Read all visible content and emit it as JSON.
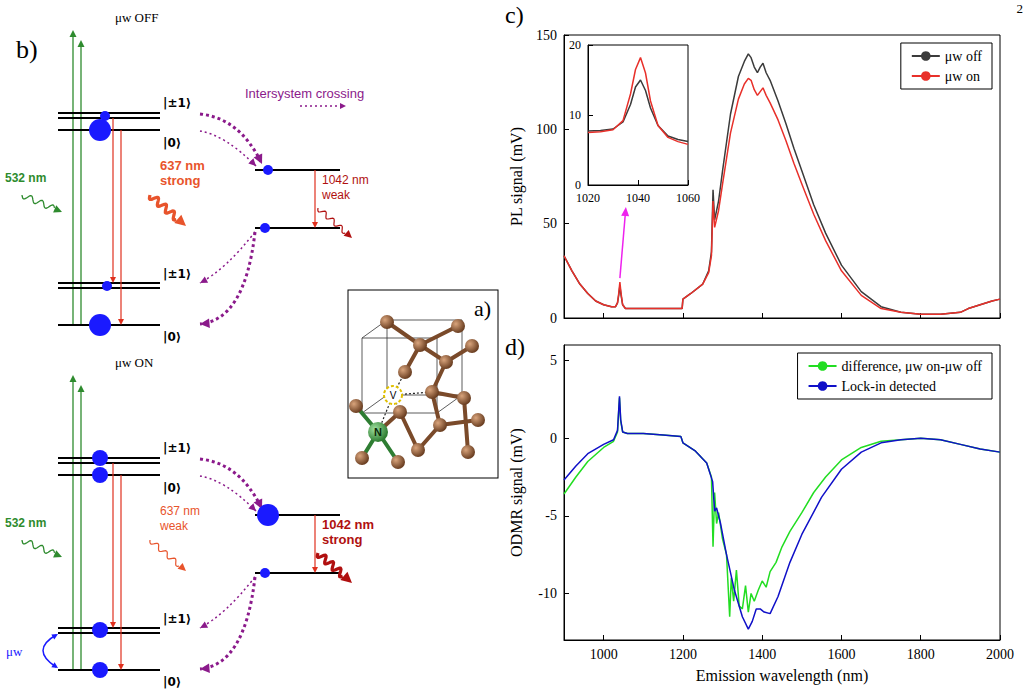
{
  "page_number": "2",
  "panel_b": {
    "letter": "b)",
    "intersystem_crossing": "Intersystem crossing",
    "levels": {
      "plus_minus_one": "|±1⟩",
      "zero": "|0⟩"
    },
    "mw_off": {
      "title": "μw OFF",
      "excitation": "532 nm",
      "visible_emission": [
        "637 nm",
        "strong"
      ],
      "infrared_emission": [
        "1042 nm",
        "weak"
      ]
    },
    "mw_on": {
      "title": "μw ON",
      "excitation": "532 nm",
      "visible_emission": [
        "637 nm",
        "weak"
      ],
      "infrared_emission": [
        "1042 nm",
        "strong"
      ],
      "microwave": "μw"
    }
  },
  "panel_a": {
    "letter": "a)",
    "atoms": {
      "nitrogen": "N",
      "vacancy": "V"
    }
  },
  "chart_data": [
    {
      "letter": "c)",
      "type": "line",
      "ylabel": "PL signal (mV)",
      "xlim": [
        900,
        2000
      ],
      "xticks": [
        1000,
        1200,
        1400,
        1600,
        1800,
        2000
      ],
      "ylim": [
        0,
        150
      ],
      "yticks": [
        0,
        50,
        100,
        150
      ],
      "tick_labels": "y",
      "legend": "upper right",
      "series": [
        {
          "name": "μw off",
          "color": "#3b3b3b",
          "x": [
            900,
            920,
            940,
            960,
            980,
            1000,
            1020,
            1030,
            1035,
            1038,
            1041,
            1044,
            1048,
            1055,
            1100,
            1150,
            1198,
            1200,
            1220,
            1250,
            1265,
            1272,
            1276,
            1280,
            1290,
            1300,
            1320,
            1340,
            1355,
            1365,
            1372,
            1380,
            1388,
            1395,
            1402,
            1410,
            1420,
            1440,
            1460,
            1480,
            1500,
            1530,
            1560,
            1600,
            1650,
            1700,
            1750,
            1800,
            1850,
            1900,
            1920,
            1950,
            1980,
            2000
          ],
          "values": [
            33,
            25,
            18,
            13,
            9,
            7,
            6,
            6,
            8,
            12,
            17,
            12,
            7,
            5,
            5,
            5,
            5,
            10,
            13,
            18,
            25,
            35,
            68,
            52,
            62,
            78,
            108,
            128,
            136,
            140,
            138,
            133,
            130,
            133,
            135,
            130,
            126,
            115,
            103,
            90,
            78,
            60,
            45,
            28,
            14,
            6,
            3,
            2,
            2,
            3,
            5,
            7,
            9,
            10
          ]
        },
        {
          "name": "μw on",
          "color": "#e8302a",
          "x": [
            900,
            920,
            940,
            960,
            980,
            1000,
            1020,
            1030,
            1035,
            1038,
            1041,
            1044,
            1048,
            1055,
            1100,
            1150,
            1198,
            1200,
            1220,
            1250,
            1265,
            1272,
            1276,
            1280,
            1290,
            1300,
            1320,
            1340,
            1355,
            1365,
            1372,
            1380,
            1388,
            1395,
            1402,
            1410,
            1420,
            1440,
            1460,
            1480,
            1500,
            1530,
            1560,
            1600,
            1650,
            1700,
            1750,
            1800,
            1850,
            1900,
            1920,
            1950,
            1980,
            2000
          ],
          "values": [
            33,
            25,
            18,
            13,
            9,
            7,
            6,
            6,
            8,
            13,
            19,
            13,
            7,
            5,
            5,
            5,
            5,
            10,
            13,
            18,
            24,
            33,
            62,
            48,
            57,
            71,
            98,
            116,
            124,
            127,
            126,
            121,
            118,
            120,
            122,
            118,
            114,
            105,
            94,
            82,
            71,
            55,
            41,
            25,
            12,
            5,
            3,
            2,
            2,
            3,
            5,
            7,
            9,
            10
          ]
        }
      ],
      "inset": {
        "type": "line",
        "xlim": [
          1020,
          1060
        ],
        "xticks": [
          1020,
          1040,
          1060
        ],
        "ylim": [
          0,
          20
        ],
        "yticks": [
          0,
          10,
          20
        ],
        "series": [
          {
            "name": "μw off",
            "color": "#3b3b3b",
            "x": [
              1020,
              1025,
              1030,
              1034,
              1037,
              1039,
              1041,
              1043,
              1045,
              1048,
              1052,
              1056,
              1060
            ],
            "values": [
              7.7,
              7.8,
              8,
              9,
              11.5,
              14,
              15,
              13.5,
              11,
              8.5,
              7,
              6.5,
              6.2
            ]
          },
          {
            "name": "μw on",
            "color": "#e8302a",
            "x": [
              1020,
              1025,
              1030,
              1034,
              1037,
              1039,
              1041,
              1043,
              1045,
              1048,
              1052,
              1056,
              1060
            ],
            "values": [
              7.5,
              7.6,
              7.9,
              9.2,
              13,
              16.5,
              18.2,
              16,
              12,
              8.5,
              6.8,
              6.2,
              5.8
            ]
          }
        ]
      }
    },
    {
      "letter": "d)",
      "type": "line",
      "xlabel": "Emission wavelength (nm)",
      "ylabel": "ODMR signal (mV)",
      "xlim": [
        900,
        2000
      ],
      "xticks": [
        1000,
        1200,
        1400,
        1600,
        1800,
        2000
      ],
      "ylim": [
        -13,
        6
      ],
      "yticks": [
        -10,
        -5,
        0,
        5
      ],
      "legend": "upper right",
      "series": [
        {
          "name": "difference, μw on-μw off",
          "color": "#22dd22",
          "x": [
            900,
            930,
            960,
            1000,
            1025,
            1035,
            1040,
            1043,
            1048,
            1060,
            1100,
            1150,
            1195,
            1200,
            1230,
            1260,
            1272,
            1276,
            1280,
            1285,
            1290,
            1300,
            1310,
            1318,
            1322,
            1328,
            1335,
            1342,
            1350,
            1358,
            1365,
            1372,
            1380,
            1390,
            1400,
            1410,
            1420,
            1435,
            1450,
            1470,
            1500,
            1530,
            1560,
            1600,
            1650,
            1700,
            1750,
            1800,
            1850,
            1900,
            1950,
            2000
          ],
          "values": [
            -3.6,
            -2.5,
            -1.5,
            -0.6,
            -0.2,
            0.4,
            2.6,
            1.1,
            0.4,
            0.3,
            0.3,
            0.2,
            0.1,
            -0.3,
            -0.8,
            -1.6,
            -2.5,
            -7,
            -3.5,
            -5.5,
            -4.8,
            -6.5,
            -7.5,
            -11.5,
            -9,
            -10.5,
            -8.5,
            -10.8,
            -11,
            -9.5,
            -11.2,
            -10,
            -10.5,
            -9.8,
            -9.2,
            -9.6,
            -8.6,
            -8,
            -7,
            -6,
            -4.8,
            -3.5,
            -2.5,
            -1.4,
            -0.6,
            -0.2,
            -0.1,
            0,
            -0.1,
            -0.4,
            -0.7,
            -0.9
          ]
        },
        {
          "name": "Lock-in detected",
          "color": "#1010c8",
          "x": [
            900,
            930,
            960,
            1000,
            1025,
            1035,
            1040,
            1043,
            1048,
            1060,
            1100,
            1150,
            1195,
            1200,
            1230,
            1260,
            1275,
            1280,
            1285,
            1295,
            1310,
            1330,
            1350,
            1365,
            1375,
            1385,
            1395,
            1405,
            1420,
            1440,
            1470,
            1500,
            1550,
            1600,
            1650,
            1700,
            1750,
            1800,
            1850,
            1900,
            1950,
            2000
          ],
          "values": [
            -2.7,
            -1.8,
            -1,
            -0.4,
            -0.1,
            0.5,
            2.7,
            1.2,
            0.4,
            0.3,
            0.3,
            0.2,
            0.1,
            -0.3,
            -0.8,
            -1.6,
            -2.8,
            -4.7,
            -4.5,
            -5.5,
            -7.5,
            -9.8,
            -11.5,
            -12.3,
            -11.8,
            -11,
            -11,
            -11.2,
            -11.3,
            -10.2,
            -8,
            -6.2,
            -3.8,
            -2,
            -0.9,
            -0.3,
            -0.1,
            0,
            -0.1,
            -0.4,
            -0.7,
            -0.9
          ]
        }
      ]
    }
  ]
}
